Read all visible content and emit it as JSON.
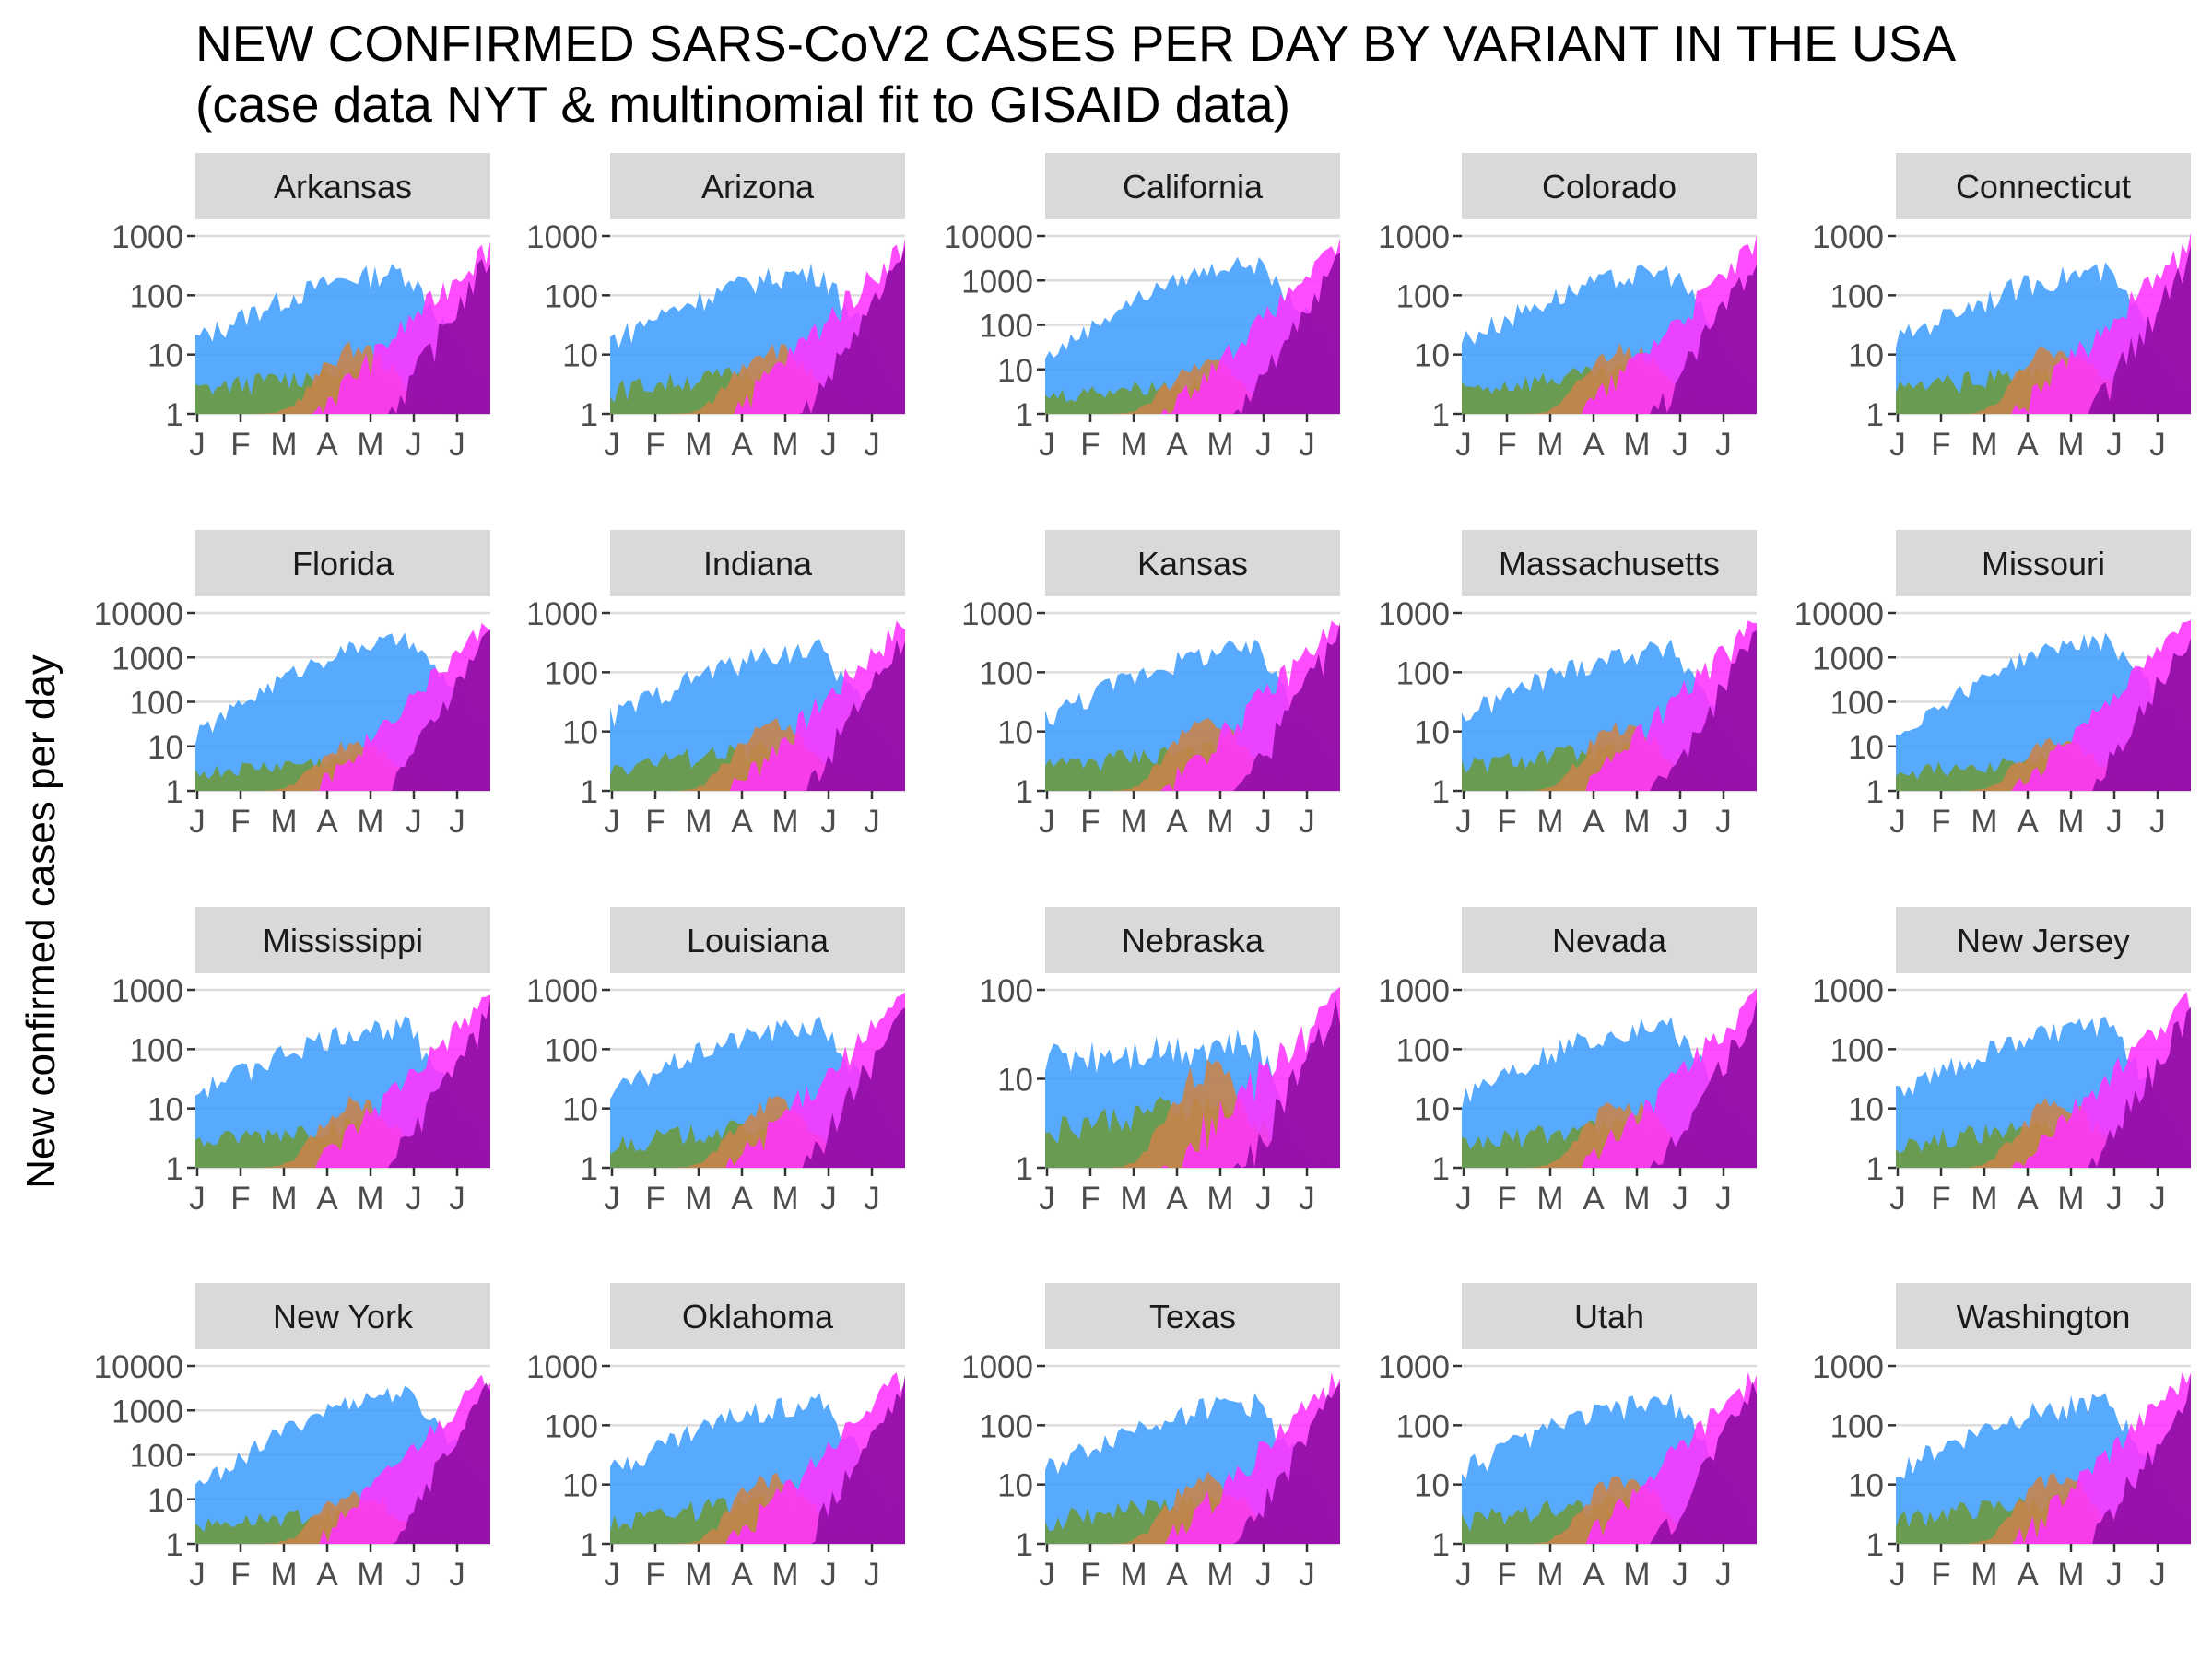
{
  "chart_data": {
    "type": "area",
    "title": "NEW CONFIRMED SARS-CoV2 CASES PER DAY BY VARIANT IN THE USA",
    "subtitle": "(case data NYT & multinomial fit to GISAID data)",
    "ylabel": "New confirmed cases per day",
    "xlabel": "",
    "y_scale": "log10",
    "x_tick_labels": [
      "J",
      "F",
      "M",
      "A",
      "M",
      "J",
      "J"
    ],
    "grid": "horizontal major lines",
    "colors": {
      "blue_variant": "#419eff",
      "green_variant": "#6b9a3a",
      "orange_variant": "#c8834a",
      "magenta_variant": "#ff33ff",
      "purple_variant": "#8c0aa0"
    },
    "panels": [
      {
        "state": "Arkansas",
        "ymax": 1000,
        "yticks": [
          "1",
          "10",
          "100",
          "1000"
        ]
      },
      {
        "state": "Arizona",
        "ymax": 1000,
        "yticks": [
          "1",
          "10",
          "100",
          "1000"
        ]
      },
      {
        "state": "California",
        "ymax": 10000,
        "yticks": [
          "1",
          "10",
          "100",
          "1000",
          "10000"
        ]
      },
      {
        "state": "Colorado",
        "ymax": 1000,
        "yticks": [
          "1",
          "10",
          "100",
          "1000"
        ]
      },
      {
        "state": "Connecticut",
        "ymax": 1000,
        "yticks": [
          "1",
          "10",
          "100",
          "1000"
        ]
      },
      {
        "state": "Florida",
        "ymax": 10000,
        "yticks": [
          "1",
          "10",
          "100",
          "1000",
          "10000"
        ]
      },
      {
        "state": "Indiana",
        "ymax": 1000,
        "yticks": [
          "1",
          "10",
          "100",
          "1000"
        ]
      },
      {
        "state": "Kansas",
        "ymax": 1000,
        "yticks": [
          "1",
          "10",
          "100",
          "1000"
        ]
      },
      {
        "state": "Massachusetts",
        "ymax": 1000,
        "yticks": [
          "1",
          "10",
          "100",
          "1000"
        ]
      },
      {
        "state": "Missouri",
        "ymax": 10000,
        "yticks": [
          "1",
          "10",
          "100",
          "1000",
          "10000"
        ]
      },
      {
        "state": "Mississippi",
        "ymax": 1000,
        "yticks": [
          "1",
          "10",
          "100",
          "1000"
        ]
      },
      {
        "state": "Louisiana",
        "ymax": 1000,
        "yticks": [
          "1",
          "10",
          "100",
          "1000"
        ]
      },
      {
        "state": "Nebraska",
        "ymax": 100,
        "yticks": [
          "1",
          "10",
          "100"
        ]
      },
      {
        "state": "Nevada",
        "ymax": 1000,
        "yticks": [
          "1",
          "10",
          "100",
          "1000"
        ]
      },
      {
        "state": "New Jersey",
        "ymax": 1000,
        "yticks": [
          "1",
          "10",
          "100",
          "1000"
        ]
      },
      {
        "state": "New York",
        "ymax": 10000,
        "yticks": [
          "1",
          "10",
          "100",
          "1000",
          "10000"
        ]
      },
      {
        "state": "Oklahoma",
        "ymax": 1000,
        "yticks": [
          "1",
          "10",
          "100",
          "1000"
        ]
      },
      {
        "state": "Texas",
        "ymax": 1000,
        "yticks": [
          "1",
          "10",
          "100",
          "1000"
        ]
      },
      {
        "state": "Utah",
        "ymax": 1000,
        "yticks": [
          "1",
          "10",
          "100",
          "1000"
        ]
      },
      {
        "state": "Washington",
        "ymax": 1000,
        "yticks": [
          "1",
          "10",
          "100",
          "1000"
        ]
      }
    ]
  }
}
